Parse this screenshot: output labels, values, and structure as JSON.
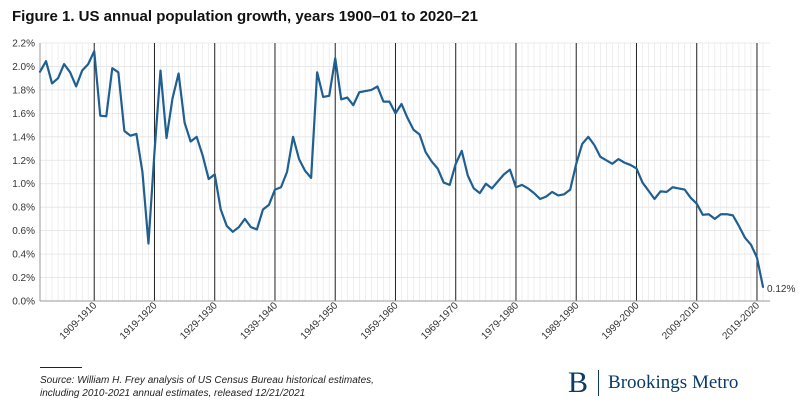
{
  "title": "Figure 1. US annual population growth, years 1900–01 to 2020–21",
  "source": "Source: William H. Frey analysis of US Census Bureau historical estimates, including 2010-2021 annual estimates, released 12/21/2021",
  "logo": {
    "mark": "B",
    "text": "Brookings Metro"
  },
  "colors": {
    "line": "#1f5f91",
    "grid": "#e4e4e4",
    "decade": "#222222",
    "axis": "#999999"
  },
  "chart_data": {
    "type": "line",
    "title": "Figure 1. US annual population growth, years 1900–01 to 2020–21",
    "xlabel": "",
    "ylabel": "",
    "ylim": [
      0,
      0.022
    ],
    "grid": true,
    "y_ticks": [
      "0.0%",
      "0.2%",
      "0.4%",
      "0.6%",
      "0.8%",
      "1.0%",
      "1.2%",
      "1.4%",
      "1.6%",
      "1.8%",
      "2.0%",
      "2.2%"
    ],
    "x_tick_labels": [
      "1909-1910",
      "1919-1920",
      "1929-1930",
      "1939-1940",
      "1949-1950",
      "1959-1960",
      "1969-1970",
      "1979-1980",
      "1989-1990",
      "1999-2000",
      "2009-2010",
      "2019-2020"
    ],
    "end_label": "0.12%",
    "series": [
      {
        "x": [
          "1900-1901",
          "1901-1902",
          "1902-1903",
          "1903-1904",
          "1904-1905",
          "1905-1906",
          "1906-1907",
          "1907-1908",
          "1908-1909",
          "1909-1910",
          "1910-1911",
          "1911-1912",
          "1912-1913",
          "1913-1914",
          "1914-1915",
          "1915-1916",
          "1916-1917",
          "1917-1918",
          "1918-1919",
          "1919-1920",
          "1920-1921",
          "1921-1922",
          "1922-1923",
          "1923-1924",
          "1924-1925",
          "1925-1926",
          "1926-1927",
          "1927-1928",
          "1928-1929",
          "1929-1930",
          "1930-1931",
          "1931-1932",
          "1932-1933",
          "1933-1934",
          "1934-1935",
          "1935-1936",
          "1936-1937",
          "1937-1938",
          "1938-1939",
          "1939-1940",
          "1940-1941",
          "1941-1942",
          "1942-1943",
          "1943-1944",
          "1944-1945",
          "1945-1946",
          "1946-1947",
          "1947-1948",
          "1948-1949",
          "1949-1950",
          "1950-1951",
          "1951-1952",
          "1952-1953",
          "1953-1954",
          "1954-1955",
          "1955-1956",
          "1956-1957",
          "1957-1958",
          "1958-1959",
          "1959-1960",
          "1960-1961",
          "1961-1962",
          "1962-1963",
          "1963-1964",
          "1964-1965",
          "1965-1966",
          "1966-1967",
          "1967-1968",
          "1968-1969",
          "1969-1970",
          "1970-1971",
          "1971-1972",
          "1972-1973",
          "1973-1974",
          "1974-1975",
          "1975-1976",
          "1976-1977",
          "1977-1978",
          "1978-1979",
          "1979-1980",
          "1980-1981",
          "1981-1982",
          "1982-1983",
          "1983-1984",
          "1984-1985",
          "1985-1986",
          "1986-1987",
          "1987-1988",
          "1988-1989",
          "1989-1990",
          "1990-1991",
          "1991-1992",
          "1992-1993",
          "1993-1994",
          "1994-1995",
          "1995-1996",
          "1996-1997",
          "1997-1998",
          "1998-1999",
          "1999-2000",
          "2000-2001",
          "2001-2002",
          "2002-2003",
          "2003-2004",
          "2004-2005",
          "2005-2006",
          "2006-2007",
          "2007-2008",
          "2008-2009",
          "2009-2010",
          "2010-2011",
          "2011-2012",
          "2012-2013",
          "2013-2014",
          "2014-2015",
          "2015-2016",
          "2016-2017",
          "2017-2018",
          "2018-2019",
          "2019-2020",
          "2020-2021"
        ],
        "values": [
          0.01955,
          0.02045,
          0.01855,
          0.019,
          0.0202,
          0.0195,
          0.0183,
          0.01965,
          0.0202,
          0.0213,
          0.0158,
          0.01575,
          0.01985,
          0.0195,
          0.0145,
          0.0141,
          0.01425,
          0.011,
          0.0049,
          0.0127,
          0.01965,
          0.0139,
          0.0173,
          0.0194,
          0.0152,
          0.0136,
          0.014,
          0.0124,
          0.0104,
          0.0108,
          0.0078,
          0.0064,
          0.0059,
          0.0063,
          0.007,
          0.0063,
          0.0061,
          0.0078,
          0.0082,
          0.0095,
          0.0097,
          0.011,
          0.014,
          0.0121,
          0.0111,
          0.0105,
          0.0195,
          0.0174,
          0.0175,
          0.0207,
          0.0172,
          0.01735,
          0.0167,
          0.0178,
          0.0179,
          0.018,
          0.0183,
          0.017,
          0.017,
          0.016,
          0.0168,
          0.0156,
          0.0146,
          0.0142,
          0.0127,
          0.0119,
          0.0113,
          0.0101,
          0.0099,
          0.0117,
          0.0128,
          0.0107,
          0.0096,
          0.0092,
          0.01,
          0.0096,
          0.0102,
          0.0108,
          0.0112,
          0.0097,
          0.0099,
          0.0096,
          0.0092,
          0.0087,
          0.0089,
          0.0093,
          0.009,
          0.0091,
          0.0095,
          0.0117,
          0.0134,
          0.014,
          0.0133,
          0.0123,
          0.012,
          0.0117,
          0.0121,
          0.0118,
          0.0116,
          0.0113,
          0.0101,
          0.0094,
          0.0087,
          0.00935,
          0.0093,
          0.0097,
          0.0096,
          0.0095,
          0.0088,
          0.0083,
          0.00735,
          0.0074,
          0.007,
          0.0074,
          0.0074,
          0.0073,
          0.0064,
          0.0054,
          0.0048,
          0.0037,
          0.0012
        ]
      }
    ]
  }
}
